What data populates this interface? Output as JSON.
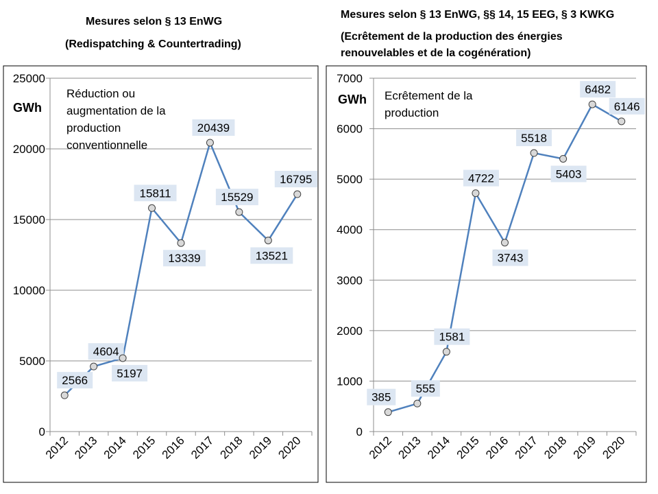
{
  "chart_data": [
    {
      "type": "line",
      "title_lines": [
        "Mesures selon § 13 EnWG",
        "(Redispatching & Countertrading)"
      ],
      "ylabel": "GWh",
      "annotation_lines": [
        "Réduction ou",
        "augmentation de la",
        "production",
        "conventionnelle"
      ],
      "categories": [
        "2012",
        "2013",
        "2014",
        "2015",
        "2016",
        "2017",
        "2018",
        "2019",
        "2020"
      ],
      "values": [
        2566,
        4604,
        5197,
        15811,
        13339,
        20439,
        15529,
        13521,
        16795
      ],
      "ylim": [
        0,
        25000
      ],
      "yticks": [
        0,
        5000,
        10000,
        15000,
        20000,
        25000
      ],
      "grid": true,
      "color": "#4f81bd",
      "label_bg": "#dce6f2"
    },
    {
      "type": "line",
      "title_lines": [
        "Mesures selon § 13 EnWG, §§ 14, 15 EEG, § 3 KWKG",
        "(Ecrêtement de la production  des énergies",
        "renouvelables  et de la cogénération)"
      ],
      "ylabel": "GWh",
      "annotation_lines": [
        "Ecrêtement de la",
        "production"
      ],
      "categories": [
        "2012",
        "2013",
        "2014",
        "2015",
        "2016",
        "2017",
        "2018",
        "2019",
        "2020"
      ],
      "values": [
        385,
        555,
        1581,
        4722,
        3743,
        5518,
        5403,
        6482,
        6146
      ],
      "ylim": [
        0,
        7000
      ],
      "yticks": [
        0,
        1000,
        2000,
        3000,
        4000,
        5000,
        6000,
        7000
      ],
      "grid": true,
      "color": "#4f81bd",
      "label_bg": "#dce6f2"
    }
  ]
}
